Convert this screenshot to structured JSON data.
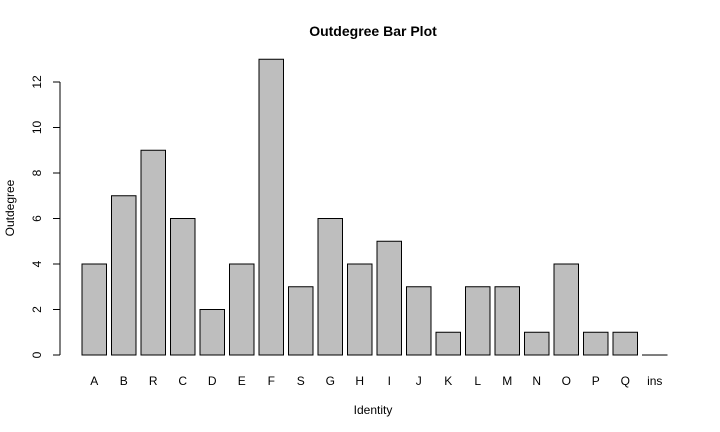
{
  "chart_data": {
    "type": "bar",
    "title": "Outdegree Bar Plot",
    "xlabel": "Identity",
    "ylabel": "Outdegree",
    "categories": [
      "A",
      "B",
      "R",
      "C",
      "D",
      "E",
      "F",
      "S",
      "G",
      "H",
      "I",
      "J",
      "K",
      "L",
      "M",
      "N",
      "O",
      "P",
      "Q",
      "ins"
    ],
    "values": [
      4,
      7,
      9,
      6,
      2,
      4,
      13,
      3,
      6,
      4,
      5,
      3,
      1,
      3,
      3,
      1,
      4,
      1,
      1,
      0
    ],
    "yticks": [
      0,
      2,
      4,
      6,
      8,
      10,
      12
    ],
    "ylim": [
      0,
      13
    ],
    "bar_color": "#bebebe",
    "grid": false,
    "legend": "none"
  }
}
